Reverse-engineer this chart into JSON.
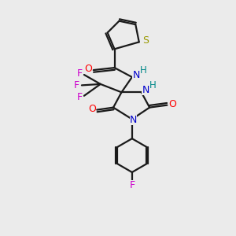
{
  "bg_color": "#ebebeb",
  "bond_color": "#1a1a1a",
  "S_color": "#999900",
  "O_color": "#ff0000",
  "N_color": "#0000cc",
  "F_color": "#cc00cc",
  "H_color": "#008888",
  "figsize": [
    3.0,
    3.0
  ],
  "dpi": 100,
  "xlim": [
    0,
    10
  ],
  "ylim": [
    0,
    10
  ]
}
